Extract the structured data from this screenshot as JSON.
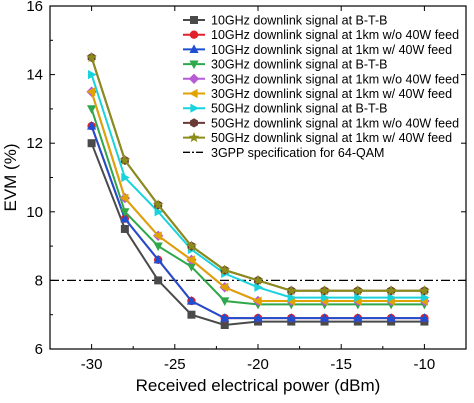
{
  "chart_data": {
    "type": "line",
    "xlabel": "Received electrical power (dBm)",
    "ylabel": "EVM (%)",
    "xlim": [
      -32.5,
      -7.5
    ],
    "ylim": [
      6,
      16
    ],
    "xticks": [
      -30,
      -25,
      -20,
      -15,
      -10
    ],
    "yticks": [
      6,
      8,
      10,
      12,
      14,
      16
    ],
    "x": [
      -30,
      -28,
      -26,
      -24,
      -22,
      -20,
      -18,
      -16,
      -14,
      -12,
      -10
    ],
    "grid": false,
    "legend_position": "top-right",
    "series": [
      {
        "name": "10GHz downlink signal at B-T-B",
        "color": "#4a4a4a",
        "marker": "square",
        "values": [
          12.0,
          9.5,
          8.0,
          7.0,
          6.7,
          6.8,
          6.8,
          6.8,
          6.8,
          6.8,
          6.8
        ]
      },
      {
        "name": "10GHz downlink signal at 1km w/o 40W feed",
        "color": "#e0202a",
        "marker": "circle",
        "values": [
          12.5,
          9.8,
          8.6,
          7.4,
          6.9,
          6.9,
          6.9,
          6.9,
          6.9,
          6.9,
          6.9
        ]
      },
      {
        "name": "10GHz downlink signal at 1km w/ 40W feed",
        "color": "#1f4fd1",
        "marker": "triangle-up",
        "values": [
          12.5,
          9.8,
          8.6,
          7.4,
          6.9,
          6.9,
          6.9,
          6.9,
          6.9,
          6.9,
          6.9
        ]
      },
      {
        "name": "30GHz downlink signal at B-T-B",
        "color": "#2ea84a",
        "marker": "triangle-down",
        "values": [
          13.0,
          10.0,
          9.0,
          8.4,
          7.4,
          7.3,
          7.3,
          7.3,
          7.3,
          7.3,
          7.3
        ]
      },
      {
        "name": "30GHz downlink signal at 1km w/o 40W feed",
        "color": "#b75ad6",
        "marker": "diamond",
        "values": [
          13.5,
          10.4,
          9.3,
          8.6,
          7.8,
          7.4,
          7.4,
          7.4,
          7.4,
          7.4,
          7.4
        ]
      },
      {
        "name": "30GHz downlink signal at 1km w/ 40W feed",
        "color": "#e0a300",
        "marker": "triangle-left",
        "values": [
          13.5,
          10.4,
          9.3,
          8.6,
          7.8,
          7.4,
          7.4,
          7.4,
          7.4,
          7.4,
          7.4
        ]
      },
      {
        "name": "50GHz downlink signal at B-T-B",
        "color": "#19d3dc",
        "marker": "triangle-right",
        "values": [
          14.0,
          11.0,
          10.0,
          8.9,
          8.2,
          7.8,
          7.5,
          7.5,
          7.5,
          7.5,
          7.5
        ]
      },
      {
        "name": "50GHz downlink signal at 1km w/o 40W feed",
        "color": "#6a3a35",
        "marker": "hexagon",
        "values": [
          14.5,
          11.5,
          10.2,
          9.0,
          8.3,
          8.0,
          7.7,
          7.7,
          7.7,
          7.7,
          7.7
        ]
      },
      {
        "name": "50GHz downlink signal at 1km w/ 40W feed",
        "color": "#8c8c1a",
        "marker": "star",
        "values": [
          14.5,
          11.5,
          10.2,
          9.0,
          8.3,
          8.0,
          7.7,
          7.7,
          7.7,
          7.7,
          7.7
        ]
      }
    ],
    "reference_line": {
      "name": "3GPP specification for 64-QAM",
      "value": 8,
      "style": "dash-dot",
      "color": "#000000"
    }
  }
}
